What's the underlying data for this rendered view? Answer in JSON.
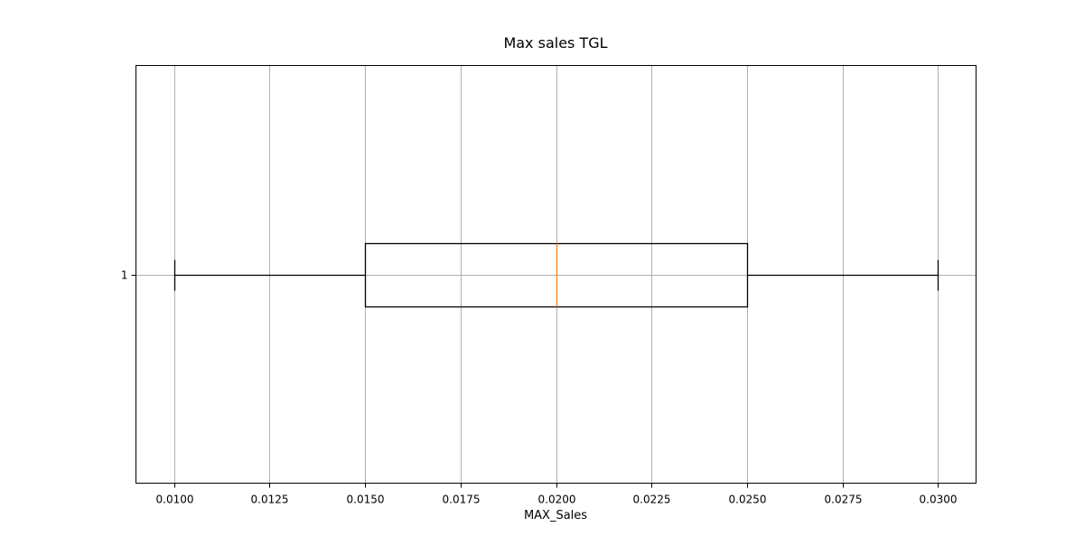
{
  "chart_data": {
    "type": "box",
    "orientation": "horizontal",
    "title": "Max sales TGL",
    "xlabel": "MAX_Sales",
    "ylabel": "",
    "xlim": [
      0.009,
      0.031
    ],
    "xticks": [
      0.01,
      0.0125,
      0.015,
      0.0175,
      0.02,
      0.0225,
      0.025,
      0.0275,
      0.03
    ],
    "xtick_labels": [
      "0.0100",
      "0.0125",
      "0.0150",
      "0.0175",
      "0.0200",
      "0.0225",
      "0.0250",
      "0.0275",
      "0.0300"
    ],
    "categories": [
      "1"
    ],
    "series": [
      {
        "whisker_low": 0.01,
        "q1": 0.015,
        "median": 0.02,
        "q3": 0.025,
        "whisker_high": 0.03
      }
    ],
    "grid": true,
    "colors": {
      "box": "#000000",
      "median": "#ff7f0e",
      "grid": "#b0b0b0"
    }
  }
}
